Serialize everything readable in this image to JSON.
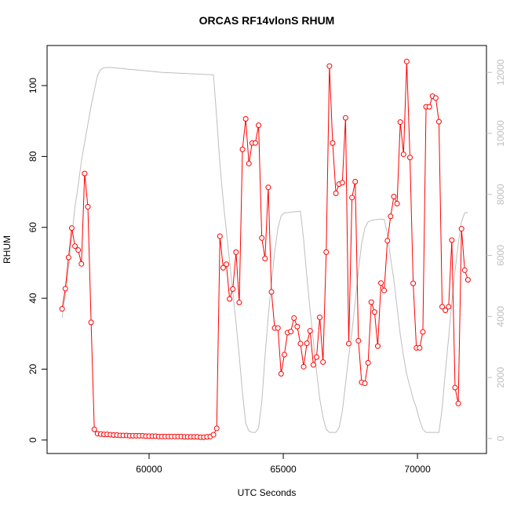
{
  "chart_data": {
    "type": "line",
    "title": "ORCAS RF14vlonS RHUM",
    "x_label": "UTC Seconds",
    "y_label": "RHUM",
    "x": [
      56760,
      56880,
      57000,
      57120,
      57240,
      57360,
      57480,
      57600,
      57720,
      57840,
      57960,
      58080,
      58200,
      58320,
      58440,
      58560,
      58680,
      58800,
      58920,
      59040,
      59160,
      59280,
      59400,
      59520,
      59640,
      59760,
      59880,
      60000,
      60120,
      60240,
      60360,
      60480,
      60600,
      60720,
      60840,
      60960,
      61080,
      61200,
      61320,
      61440,
      61560,
      61680,
      61800,
      61920,
      62040,
      62160,
      62280,
      62400,
      62520,
      62640,
      62760,
      62880,
      63000,
      63120,
      63240,
      63360,
      63480,
      63600,
      63720,
      63840,
      63960,
      64080,
      64200,
      64320,
      64440,
      64560,
      64680,
      64800,
      64920,
      65040,
      65160,
      65280,
      65400,
      65520,
      65640,
      65760,
      65880,
      66000,
      66120,
      66240,
      66360,
      66480,
      66600,
      66720,
      66840,
      66960,
      67080,
      67200,
      67320,
      67440,
      67560,
      67680,
      67800,
      67920,
      68040,
      68160,
      68280,
      68400,
      68520,
      68640,
      68760,
      68880,
      69000,
      69120,
      69240,
      69360,
      69480,
      69600,
      69720,
      69840,
      69960,
      70080,
      70200,
      70320,
      70440,
      70560,
      70680,
      70800,
      70920,
      71040,
      71160,
      71280,
      71400,
      71520,
      71640,
      71760,
      71880
    ],
    "series": [
      {
        "color": "#bebebe",
        "axis": "y2",
        "marker": "none",
        "values": [
          3960,
          4700,
          5600,
          6600,
          7600,
          8300,
          9100,
          9700,
          10300,
          10900,
          11400,
          11900,
          12100,
          12150,
          12160,
          12160,
          12150,
          12140,
          12130,
          12120,
          12110,
          12100,
          12090,
          12080,
          12070,
          12060,
          12050,
          12040,
          12030,
          12020,
          12010,
          12000,
          11995,
          11990,
          11985,
          11980,
          11975,
          11970,
          11965,
          11960,
          11955,
          11950,
          11945,
          11940,
          11935,
          11930,
          11925,
          11920,
          10500,
          9000,
          7800,
          6800,
          5800,
          4800,
          3800,
          2700,
          1500,
          500,
          250,
          200,
          200,
          350,
          1200,
          2700,
          4000,
          5100,
          6100,
          6900,
          7300,
          7400,
          7400,
          7420,
          7430,
          7440,
          7450,
          6500,
          5300,
          4200,
          3200,
          2200,
          1300,
          700,
          300,
          200,
          200,
          200,
          350,
          900,
          1800,
          2700,
          3500,
          4500,
          5500,
          6400,
          6900,
          7100,
          7150,
          7170,
          7180,
          7190,
          7180,
          6700,
          5900,
          5200,
          4300,
          3400,
          2700,
          2100,
          1700,
          1300,
          1000,
          600,
          300,
          200,
          200,
          200,
          200,
          200,
          1000,
          2200,
          3300,
          4500,
          5500,
          6400,
          7100,
          7400,
          7400
        ]
      },
      {
        "color": "#ff0000",
        "marker": "circle",
        "values": [
          37,
          42.7,
          51.5,
          59.8,
          54.7,
          53.6,
          49.7,
          75.2,
          65.8,
          33.2,
          3,
          1.8,
          1.7,
          1.6,
          1.6,
          1.5,
          1.4,
          1.4,
          1.3,
          1.3,
          1.3,
          1.2,
          1.2,
          1.2,
          1.2,
          1.2,
          1.1,
          1.1,
          1.1,
          1.1,
          1.0,
          1.0,
          1.0,
          1.0,
          1.0,
          1.0,
          1.0,
          1.0,
          0.9,
          0.9,
          0.9,
          0.9,
          0.9,
          0.8,
          0.8,
          0.9,
          1.0,
          1.5,
          3.3,
          57.5,
          48.6,
          49.6,
          39.8,
          42.6,
          53,
          38.8,
          82,
          90.6,
          78,
          83.8,
          83.8,
          88.8,
          57,
          51.2,
          71.3,
          41.8,
          31.6,
          31.6,
          18.7,
          24.1,
          30.3,
          30.6,
          34.4,
          32,
          27.2,
          20.7,
          27.3,
          30.8,
          21.2,
          23.4,
          34.6,
          22,
          53,
          105.5,
          83.8,
          69.6,
          72.2,
          72.6,
          90.9,
          27.2,
          68.4,
          72.9,
          28,
          16.3,
          16,
          21.8,
          38.9,
          36.1,
          26.5,
          44.3,
          42.2,
          56.2,
          63.1,
          68.7,
          66.7,
          89.7,
          80.6,
          106.8,
          79.7,
          44.2,
          26,
          26,
          30.5,
          94,
          94,
          97,
          96.5,
          89.8,
          37.6,
          36.6,
          37.6,
          56.4,
          14.8,
          10.3,
          59.6,
          47.9,
          45.2
        ]
      }
    ],
    "xlim": [
      56200,
      72570
    ],
    "xticks": [
      60000,
      65000,
      70000
    ],
    "ylim": [
      -3.8,
      111.3
    ],
    "yticks": [
      0,
      20,
      40,
      60,
      80,
      100
    ],
    "y2lim": [
      -490,
      12880
    ],
    "y2ticks": [
      0,
      2000,
      4000,
      6000,
      8000,
      10000,
      12000
    ]
  }
}
